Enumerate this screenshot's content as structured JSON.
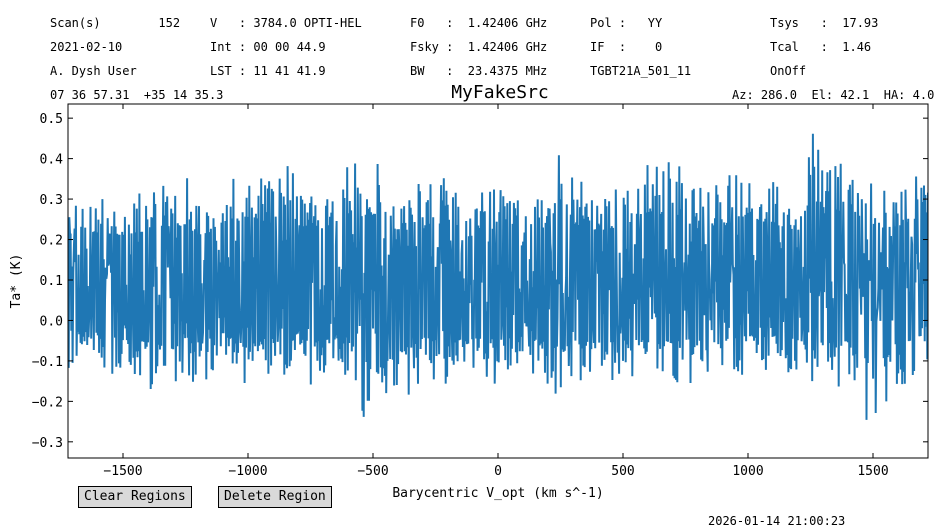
{
  "header": {
    "rows": [
      [
        "Scan(s)        152",
        "V   : 3784.0 OPTI-HEL",
        "F0   :  1.42406 GHz",
        "Pol :   YY",
        "Tsys   :  17.93"
      ],
      [
        "2021-02-10",
        "Int : 00 00 44.9",
        "Fsky :  1.42406 GHz",
        "IF  :    0",
        "Tcal   :  1.46"
      ],
      [
        "A. Dysh User",
        "LST : 11 41 41.9",
        "BW   :  23.4375 MHz",
        "TGBT21A_501_11",
        "OnOff"
      ]
    ],
    "coords": "07 36 57.31  +35 14 35.3",
    "azel": "Az: 286.0  El: 42.1  HA: 4.0"
  },
  "chart_data": {
    "type": "line",
    "title": "MyFakeSrc",
    "xlabel": "Barycentric V_opt (km s^-1)",
    "ylabel": "Ta* (K)",
    "xlim": [
      -1720,
      1720
    ],
    "ylim": [
      -0.34,
      0.535
    ],
    "xticks": [
      -1500,
      -1000,
      -500,
      0,
      500,
      1000,
      1500
    ],
    "yticks": [
      -0.3,
      -0.2,
      -0.1,
      0.0,
      0.1,
      0.2,
      0.3,
      0.4,
      0.5
    ],
    "grid": false,
    "color": "#1f77b4",
    "series": [
      {
        "x": [
          -1700,
          -1600,
          -1500,
          -1400,
          -1300,
          -1250,
          -1200,
          -1100,
          -1000,
          -900,
          -860,
          -800,
          -700,
          -600,
          -500,
          -400,
          -300,
          -200,
          -100,
          0,
          100,
          200,
          250,
          300,
          400,
          500,
          600,
          700,
          800,
          900,
          1000,
          1100,
          1200,
          1260,
          1300,
          1400,
          1500,
          1600,
          1700
        ],
        "max": [
          0.34,
          0.32,
          0.31,
          0.33,
          0.34,
          0.36,
          0.3,
          0.35,
          0.39,
          0.36,
          0.46,
          0.35,
          0.34,
          0.39,
          0.4,
          0.33,
          0.34,
          0.36,
          0.34,
          0.33,
          0.32,
          0.35,
          0.47,
          0.36,
          0.33,
          0.35,
          0.41,
          0.4,
          0.34,
          0.35,
          0.39,
          0.36,
          0.33,
          0.49,
          0.37,
          0.44,
          0.34,
          0.35,
          0.4
        ],
        "min": [
          -0.12,
          -0.13,
          -0.16,
          -0.17,
          -0.2,
          -0.15,
          -0.16,
          -0.13,
          -0.17,
          -0.15,
          -0.16,
          -0.16,
          -0.16,
          -0.15,
          -0.3,
          -0.22,
          -0.15,
          -0.17,
          -0.15,
          -0.16,
          -0.14,
          -0.17,
          -0.2,
          -0.16,
          -0.17,
          -0.16,
          -0.16,
          -0.17,
          -0.15,
          -0.16,
          -0.14,
          -0.14,
          -0.16,
          -0.19,
          -0.17,
          -0.16,
          -0.28,
          -0.17,
          -0.14
        ]
      }
    ]
  },
  "buttons": {
    "clear_regions": "Clear Regions",
    "delete_region": "Delete Region"
  },
  "timestamp": "2026-01-14 21:00:23"
}
